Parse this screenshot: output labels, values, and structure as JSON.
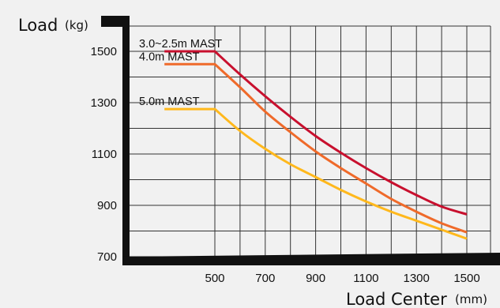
{
  "chart_data": {
    "type": "line",
    "title": "",
    "ylabel": "Load",
    "yunit": "(kg)",
    "xlabel": "Load Center",
    "xunit": "(mm)",
    "xlim": [
      300,
      1500
    ],
    "ylim": [
      700,
      1500
    ],
    "x_ticks": [
      "500",
      "700",
      "900",
      "1100",
      "1300",
      "1500"
    ],
    "y_ticks": [
      "1500",
      "1300",
      "1100",
      "900",
      "700"
    ],
    "grid": true,
    "series": [
      {
        "name": "3.0~2.5m MAST",
        "color": "#c8102e",
        "x": [
          300,
          500,
          600,
          700,
          800,
          900,
          1000,
          1100,
          1200,
          1300,
          1400,
          1500
        ],
        "y": [
          1500,
          1500,
          1410,
          1325,
          1245,
          1170,
          1105,
          1045,
          990,
          940,
          895,
          865
        ]
      },
      {
        "name": "4.0m MAST",
        "color": "#ef6a2a",
        "x": [
          300,
          500,
          600,
          700,
          800,
          900,
          1000,
          1100,
          1200,
          1300,
          1400,
          1500
        ],
        "y": [
          1450,
          1450,
          1360,
          1265,
          1185,
          1110,
          1045,
          985,
          925,
          875,
          830,
          795
        ]
      },
      {
        "name": "5.0m MAST",
        "color": "#ffb81c",
        "x": [
          300,
          500,
          600,
          700,
          800,
          900,
          1000,
          1100,
          1200,
          1300,
          1400,
          1500
        ],
        "y": [
          1275,
          1275,
          1190,
          1120,
          1060,
          1010,
          960,
          915,
          875,
          840,
          805,
          770
        ]
      }
    ]
  }
}
